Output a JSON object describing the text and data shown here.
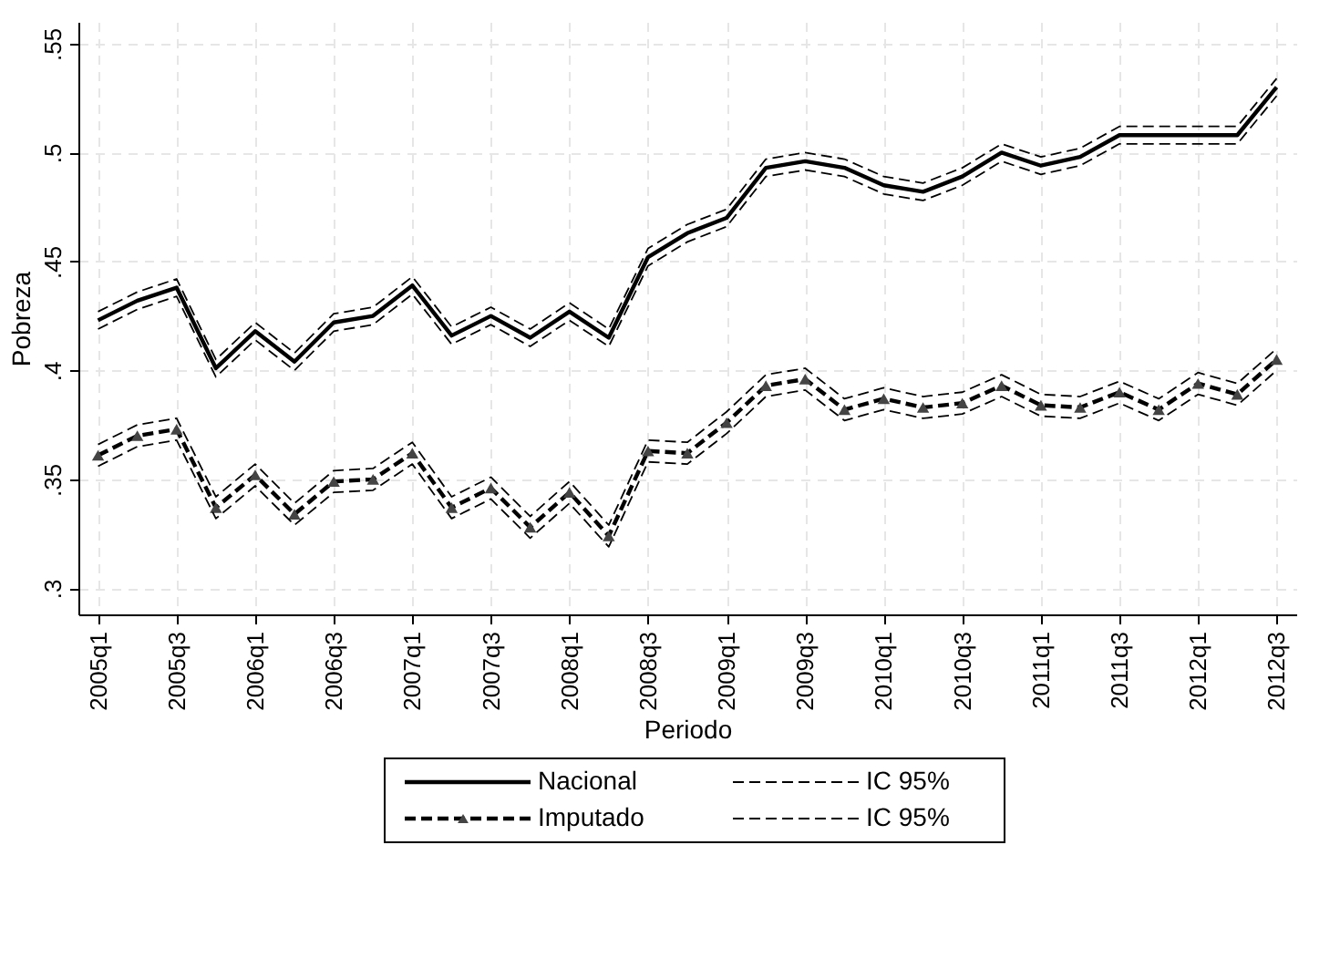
{
  "chart_data": {
    "type": "line",
    "xlabel": "Periodo",
    "ylabel": "Pobreza",
    "categories": [
      "2005q1",
      null,
      "2005q3",
      null,
      "2006q1",
      null,
      "2006q3",
      null,
      "2007q1",
      null,
      "2007q3",
      null,
      "2008q1",
      null,
      "2008q3",
      null,
      "2009q1",
      null,
      "2009q3",
      null,
      "2010q1",
      null,
      "2010q3",
      null,
      "2011q1",
      null,
      "2011q3",
      null,
      "2012q1",
      null,
      "2012q3"
    ],
    "ylim": [
      0.288,
      0.56
    ],
    "yticks": [
      {
        "value": 0.3,
        "label": ".3"
      },
      {
        "value": 0.35,
        "label": ".35"
      },
      {
        "value": 0.4,
        "label": ".4"
      },
      {
        "value": 0.45,
        "label": ".45"
      },
      {
        "value": 0.5,
        "label": ".5"
      },
      {
        "value": 0.55,
        "label": ".55"
      }
    ],
    "grid": true,
    "legend": "bottom",
    "series": [
      {
        "name": "Nacional",
        "color": "#000000",
        "line_style": "solid",
        "marker": "none",
        "values": [
          0.423,
          0.432,
          0.438,
          0.401,
          0.418,
          0.404,
          0.422,
          0.425,
          0.439,
          0.416,
          0.425,
          0.415,
          0.427,
          0.415,
          0.452,
          0.463,
          0.47,
          0.493,
          0.496,
          0.493,
          0.485,
          0.482,
          0.489,
          0.5,
          0.494,
          0.498,
          0.508,
          0.508,
          0.508,
          0.508,
          0.53
        ]
      },
      {
        "name": "IC 95%",
        "color": "#000000",
        "line_style": "dashed",
        "marker": "none",
        "values": [
          0.427,
          0.436,
          0.442,
          0.405,
          0.422,
          0.408,
          0.426,
          0.429,
          0.443,
          0.42,
          0.429,
          0.419,
          0.431,
          0.419,
          0.456,
          0.467,
          0.474,
          0.497,
          0.5,
          0.497,
          0.489,
          0.486,
          0.493,
          0.504,
          0.498,
          0.502,
          0.512,
          0.512,
          0.512,
          0.512,
          0.534
        ]
      },
      {
        "color": "#000000",
        "line_style": "dashed",
        "marker": "none",
        "values": [
          0.419,
          0.428,
          0.434,
          0.397,
          0.414,
          0.4,
          0.418,
          0.421,
          0.435,
          0.412,
          0.421,
          0.411,
          0.423,
          0.411,
          0.448,
          0.459,
          0.466,
          0.489,
          0.492,
          0.489,
          0.481,
          0.478,
          0.485,
          0.496,
          0.49,
          0.494,
          0.504,
          0.504,
          0.504,
          0.504,
          0.526
        ]
      },
      {
        "name": "Imputado",
        "color": "#000000",
        "line_style": "dashed",
        "marker": "triangle",
        "values": [
          0.361,
          0.37,
          0.373,
          0.337,
          0.352,
          0.334,
          0.349,
          0.35,
          0.362,
          0.337,
          0.346,
          0.328,
          0.344,
          0.324,
          0.363,
          0.362,
          0.376,
          0.393,
          0.396,
          0.382,
          0.387,
          0.383,
          0.385,
          0.393,
          0.384,
          0.383,
          0.39,
          0.382,
          0.394,
          0.389,
          0.405
        ]
      },
      {
        "name": "IC 95%",
        "color": "#000000",
        "line_style": "dashed",
        "marker": "none",
        "values": [
          0.366,
          0.375,
          0.378,
          0.342,
          0.357,
          0.339,
          0.354,
          0.355,
          0.367,
          0.342,
          0.351,
          0.333,
          0.349,
          0.329,
          0.368,
          0.367,
          0.381,
          0.398,
          0.401,
          0.387,
          0.392,
          0.388,
          0.39,
          0.398,
          0.389,
          0.388,
          0.395,
          0.387,
          0.399,
          0.394,
          0.41
        ]
      },
      {
        "color": "#000000",
        "line_style": "dashed",
        "marker": "none",
        "values": [
          0.356,
          0.365,
          0.368,
          0.332,
          0.347,
          0.329,
          0.344,
          0.345,
          0.357,
          0.332,
          0.341,
          0.323,
          0.339,
          0.319,
          0.358,
          0.357,
          0.371,
          0.388,
          0.391,
          0.377,
          0.382,
          0.378,
          0.38,
          0.388,
          0.379,
          0.378,
          0.385,
          0.377,
          0.389,
          0.384,
          0.4
        ]
      }
    ]
  }
}
